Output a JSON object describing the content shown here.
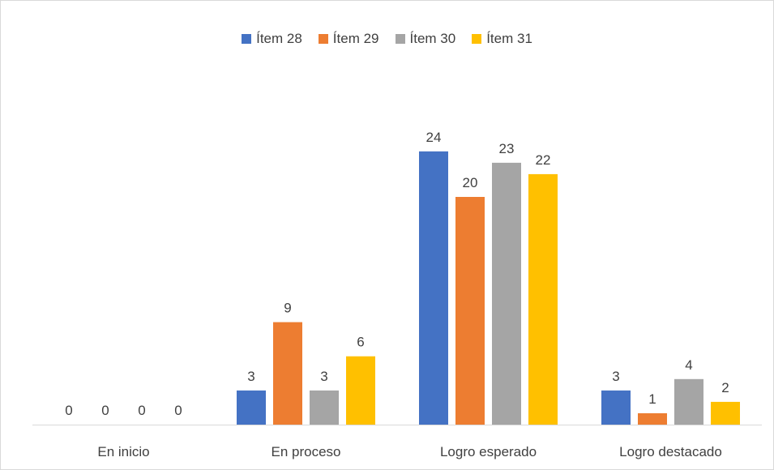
{
  "chart_data": {
    "type": "bar",
    "categories": [
      "En inicio",
      "En proceso",
      "Logro esperado",
      "Logro destacado"
    ],
    "series": [
      {
        "name": "Ítem 28",
        "color": "#4472c4",
        "values": [
          0,
          3,
          24,
          3
        ]
      },
      {
        "name": "Ítem 29",
        "color": "#ed7d31",
        "values": [
          0,
          9,
          20,
          1
        ]
      },
      {
        "name": "Ítem 30",
        "color": "#a5a5a5",
        "values": [
          0,
          3,
          23,
          4
        ]
      },
      {
        "name": "Ítem 31",
        "color": "#ffc000",
        "values": [
          0,
          6,
          22,
          2
        ]
      }
    ],
    "title": "",
    "xlabel": "",
    "ylabel": "",
    "ylim": [
      0,
      24
    ],
    "grid": false,
    "legend_position": "top",
    "data_labels": true
  }
}
